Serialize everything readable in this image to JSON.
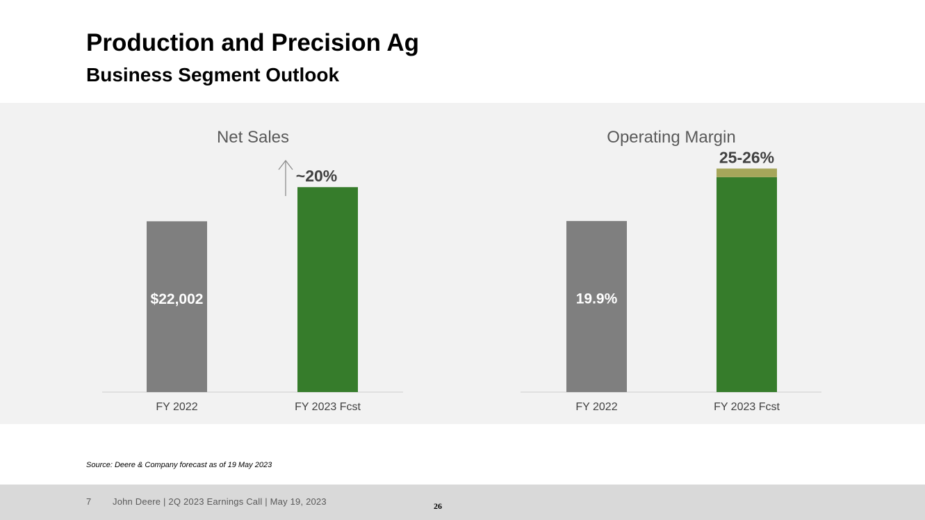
{
  "header": {
    "title": "Production and Precision Ag",
    "subtitle": "Business Segment Outlook"
  },
  "colors": {
    "panel_bg": "#f2f2f2",
    "fy2022_bar": "#7f7f7f",
    "forecast_bar": "#367c2b",
    "range_band": "#a6a65a",
    "axis_line": "#d9d9d9"
  },
  "chart_data": [
    {
      "type": "bar",
      "title": "Net Sales",
      "categories": [
        "FY 2022",
        "FY 2023 Fcst"
      ],
      "values": [
        22002,
        26402
      ],
      "data_labels": [
        "$22,002",
        "~20%"
      ],
      "growth_arrow": "up-arrow-icon",
      "ylim": [
        0,
        30000
      ]
    },
    {
      "type": "bar",
      "title": "Operating Margin",
      "categories": [
        "FY 2022",
        "FY 2023 Fcst"
      ],
      "values": [
        19.9,
        25.0
      ],
      "range_high": 26.0,
      "data_labels": [
        "19.9%",
        "25-26%"
      ],
      "ylim": [
        0,
        30
      ]
    }
  ],
  "source": "Source: Deere & Company forecast as of 19 May 2023",
  "footer": {
    "page_number": "7",
    "text": "John Deere | 2Q 2023 Earnings Call | May 19, 2023",
    "slide_number": "26"
  }
}
